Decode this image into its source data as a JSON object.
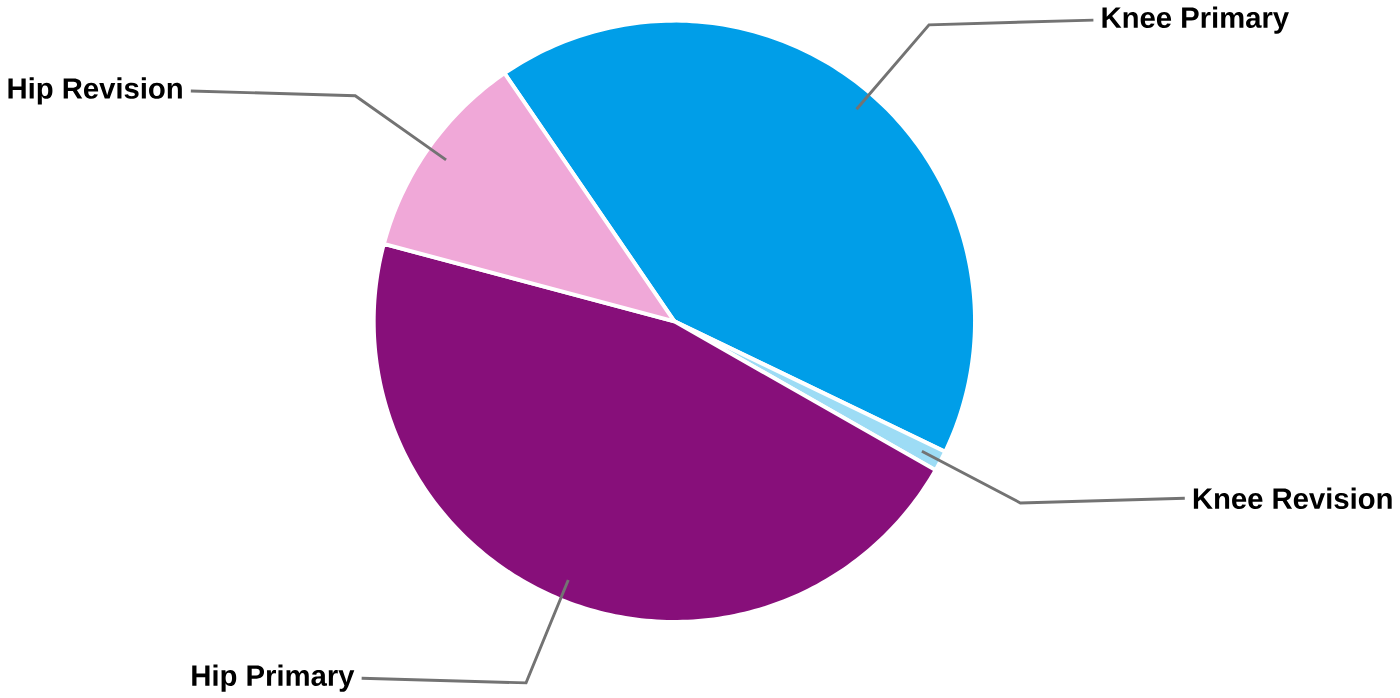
{
  "chart_data": {
    "type": "pie",
    "categories": [
      "Knee Primary",
      "Knee Revision",
      "Hip Primary",
      "Hip Revision"
    ],
    "values": [
      41.7,
      1.1,
      45.9,
      11.3
    ],
    "colors": [
      "#009ee8",
      "#9ddcf5",
      "#870f7a",
      "#f0a8d8"
    ]
  }
}
